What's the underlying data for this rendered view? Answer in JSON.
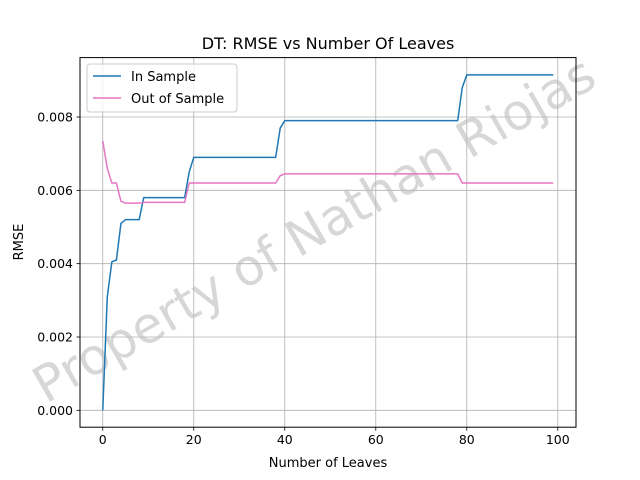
{
  "chart_data": {
    "type": "line",
    "title": "DT: RMSE vs Number Of Leaves",
    "xlabel": "Number of Leaves",
    "ylabel": "RMSE",
    "xlim": [
      -5,
      104
    ],
    "ylim": [
      -0.00046,
      0.00962
    ],
    "xticks": [
      0,
      20,
      40,
      60,
      80,
      100
    ],
    "xtick_labels": [
      "0",
      "20",
      "40",
      "60",
      "80",
      "100"
    ],
    "yticks": [
      0,
      0.002,
      0.004,
      0.006,
      0.008
    ],
    "ytick_labels": [
      "0.000",
      "0.002",
      "0.004",
      "0.006",
      "0.008"
    ],
    "grid": true,
    "legend_position": "top-left",
    "series": [
      {
        "name": "In Sample",
        "color": "#1f77b4",
        "x": [
          0,
          1,
          2,
          3,
          4,
          5,
          8,
          9,
          18,
          19,
          20,
          38,
          39,
          40,
          78,
          79,
          80,
          99
        ],
        "y": [
          0.0,
          0.0031,
          0.00405,
          0.0041,
          0.0051,
          0.0052,
          0.0052,
          0.0058,
          0.0058,
          0.0065,
          0.0069,
          0.0069,
          0.0077,
          0.0079,
          0.0079,
          0.0088,
          0.00915,
          0.00915
        ]
      },
      {
        "name": "Out of Sample",
        "color": "#e377c2",
        "x": [
          0,
          1,
          2,
          3,
          4,
          5,
          8,
          9,
          18,
          19,
          20,
          38,
          39,
          40,
          78,
          79,
          80,
          99
        ],
        "y": [
          0.00735,
          0.0066,
          0.0062,
          0.0062,
          0.0057,
          0.00565,
          0.00565,
          0.00567,
          0.00567,
          0.0062,
          0.0062,
          0.0062,
          0.0064,
          0.00645,
          0.00645,
          0.0062,
          0.0062,
          0.0062
        ]
      }
    ]
  },
  "watermark": {
    "text": "Property of Nathan Riojas"
  }
}
